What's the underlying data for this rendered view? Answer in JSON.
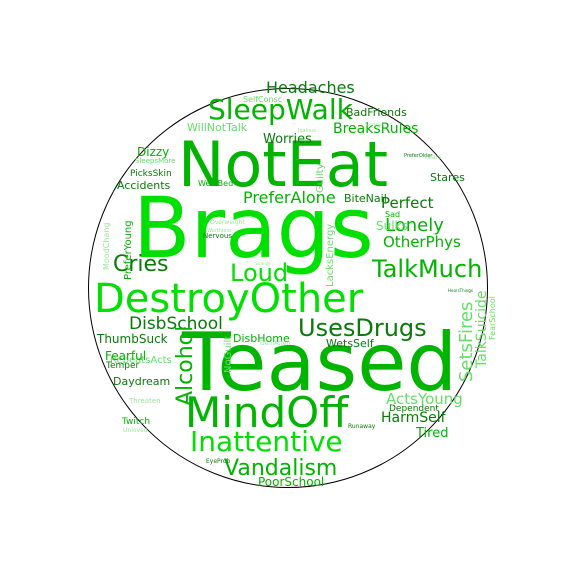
{
  "colors": {
    "dark": "#0a7a0a",
    "mid": "#00b400",
    "bright": "#00e000",
    "light": "#66dd66",
    "pale": "#99e699"
  },
  "words": [
    {
      "text": "NotEat",
      "c": "mid"
    },
    {
      "text": "Brags",
      "c": "bright"
    },
    {
      "text": "DestroyOther",
      "c": "bright"
    },
    {
      "text": "Teased",
      "c": "mid"
    },
    {
      "text": "MindOff",
      "c": "mid"
    },
    {
      "text": "SleepWalk",
      "c": "mid"
    },
    {
      "text": "Inattentive",
      "c": "bright"
    },
    {
      "text": "Vandalism",
      "c": "mid"
    },
    {
      "text": "TalkMuch",
      "c": "mid"
    },
    {
      "text": "UsesDrugs",
      "c": "dark"
    },
    {
      "text": "Headaches",
      "c": "dark"
    },
    {
      "text": "Loud",
      "c": "bright"
    },
    {
      "text": "Cries",
      "c": "dark"
    },
    {
      "text": "Lonely",
      "c": "mid"
    },
    {
      "text": "Perfect",
      "c": "dark"
    },
    {
      "text": "OtherPhys",
      "c": "mid"
    },
    {
      "text": "PreferAlone",
      "c": "mid"
    },
    {
      "text": "DisbSchool",
      "c": "dark"
    },
    {
      "text": "BreaksRules",
      "c": "mid"
    },
    {
      "text": "Worries",
      "c": "dark"
    },
    {
      "text": "Alcohol",
      "c": "mid"
    },
    {
      "text": "SetsFires",
      "c": "light"
    },
    {
      "text": "TalkSuicide",
      "c": "light"
    },
    {
      "text": "ActsYoung",
      "c": "light"
    },
    {
      "text": "HarmSelf",
      "c": "dark"
    },
    {
      "text": "Tired",
      "c": "mid"
    },
    {
      "text": "PoorSchool",
      "c": "mid"
    },
    {
      "text": "WillNotTalk",
      "c": "light"
    },
    {
      "text": "BadFriends",
      "c": "dark"
    },
    {
      "text": "SelfConsc",
      "c": "light"
    },
    {
      "text": "Accidents",
      "c": "dark"
    },
    {
      "text": "PicksSkin",
      "c": "dark"
    },
    {
      "text": "Dizzy",
      "c": "mid"
    },
    {
      "text": "SleepsMore",
      "c": "light"
    },
    {
      "text": "BiteNail",
      "c": "dark"
    },
    {
      "text": "WetsBed",
      "c": "mid"
    },
    {
      "text": "Sulks",
      "c": "light"
    },
    {
      "text": "Guilty",
      "c": "light"
    },
    {
      "text": "LacksEnergy",
      "c": "light"
    },
    {
      "text": "Stares",
      "c": "dark"
    },
    {
      "text": "Sad",
      "c": "mid"
    },
    {
      "text": "ThumbSuck",
      "c": "dark"
    },
    {
      "text": "RepeatsActs",
      "c": "light"
    },
    {
      "text": "Fearful",
      "c": "mid"
    },
    {
      "text": "Temper",
      "c": "dark"
    },
    {
      "text": "Daydream",
      "c": "dark"
    },
    {
      "text": "DisbHome",
      "c": "mid"
    },
    {
      "text": "NoGuilt",
      "c": "light"
    },
    {
      "text": "WetsSelf",
      "c": "dark"
    },
    {
      "text": "Twitch",
      "c": "mid"
    },
    {
      "text": "Threaten",
      "c": "pale"
    },
    {
      "text": "Unloved",
      "c": "pale"
    },
    {
      "text": "EyeProb",
      "c": "dark"
    },
    {
      "text": "Dependent",
      "c": "dark"
    },
    {
      "text": "Runaway",
      "c": "dark"
    },
    {
      "text": "PreferYoung",
      "c": "mid"
    },
    {
      "text": "MoodChang",
      "c": "pale"
    },
    {
      "text": "Nervous",
      "c": "dark"
    },
    {
      "text": "Overweight",
      "c": "pale"
    },
    {
      "text": "Worthless",
      "c": "pale"
    },
    {
      "text": "DemAtten",
      "c": "pale"
    },
    {
      "text": "PreferOlder",
      "c": "dark"
    },
    {
      "text": "Fears",
      "c": "pale"
    },
    {
      "text": "Jealous",
      "c": "pale"
    },
    {
      "text": "FearSchool",
      "c": "light"
    },
    {
      "text": "HearsThings",
      "c": "dark"
    },
    {
      "text": "Secretive",
      "c": "pale"
    },
    {
      "text": "Strange",
      "c": "pale"
    }
  ]
}
